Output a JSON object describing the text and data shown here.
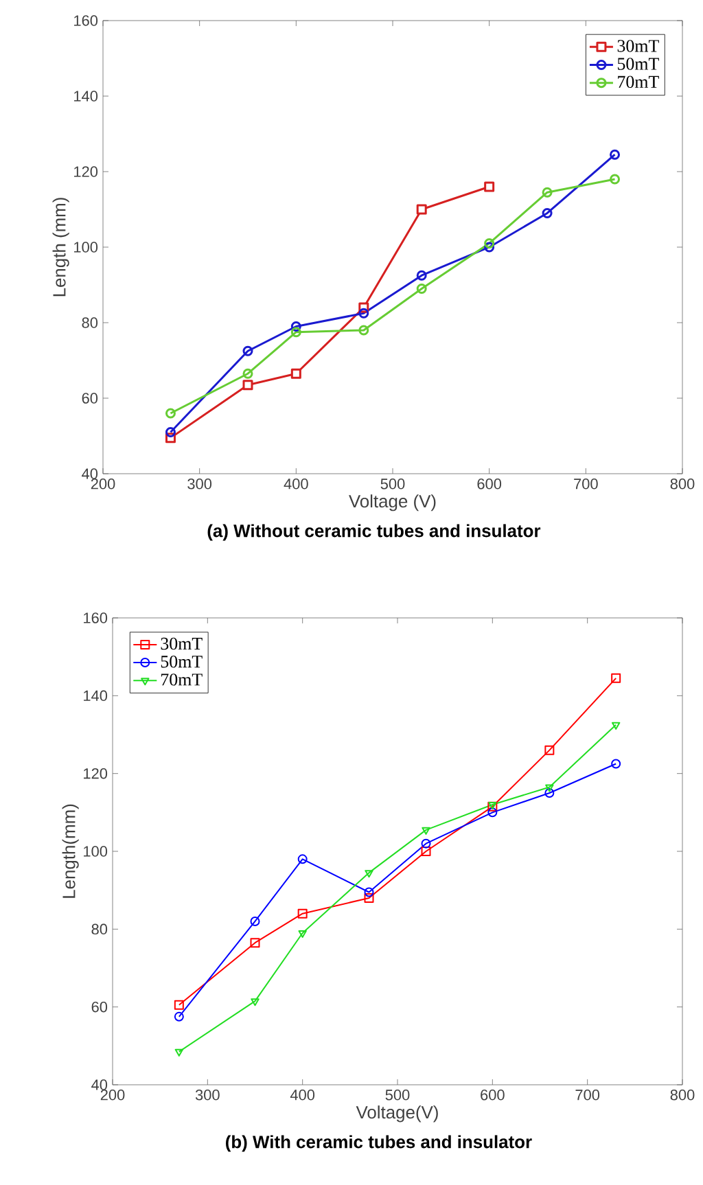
{
  "chart_data": [
    {
      "type": "line",
      "title": "(a) Without ceramic tubes and insulator",
      "xlabel": "Voltage (V)",
      "ylabel": "Length (mm)",
      "xlim": [
        200,
        800
      ],
      "ylim": [
        40,
        160
      ],
      "xticks": [
        200,
        300,
        400,
        500,
        600,
        700,
        800
      ],
      "yticks": [
        40,
        60,
        80,
        100,
        120,
        140,
        160
      ],
      "legend": "top right",
      "line_style": "solid",
      "series": [
        {
          "name": "30mT",
          "color": "#d62020",
          "marker": "square",
          "x": [
            270,
            350,
            400,
            470,
            530,
            600
          ],
          "values": [
            49.5,
            63.5,
            66.5,
            84,
            110,
            116
          ]
        },
        {
          "name": "50mT",
          "color": "#1a1ad0",
          "marker": "circle",
          "x": [
            270,
            350,
            400,
            470,
            530,
            600,
            660,
            730
          ],
          "values": [
            51,
            72.5,
            79,
            82.5,
            92.5,
            100,
            109,
            124.5
          ]
        },
        {
          "name": "70mT",
          "color": "#66cc33",
          "marker": "circle",
          "x": [
            270,
            350,
            400,
            470,
            530,
            600,
            660,
            730
          ],
          "values": [
            56,
            66.5,
            77.5,
            78,
            89,
            101,
            114.5,
            118
          ]
        }
      ]
    },
    {
      "type": "line",
      "title": "(b) With ceramic tubes and insulator",
      "xlabel": "Voltage(V)",
      "ylabel": "Length(mm)",
      "xlim": [
        200,
        800
      ],
      "ylim": [
        40,
        160
      ],
      "xticks": [
        200,
        300,
        400,
        500,
        600,
        700,
        800
      ],
      "yticks": [
        40,
        60,
        80,
        100,
        120,
        140,
        160
      ],
      "legend": "top left",
      "line_style": "solid",
      "series": [
        {
          "name": "30mT",
          "color": "#ff0000",
          "marker": "square",
          "x": [
            270,
            350,
            400,
            470,
            530,
            600,
            660,
            730
          ],
          "values": [
            60.5,
            76.5,
            84,
            88,
            100,
            111.5,
            126,
            144.5
          ]
        },
        {
          "name": "50mT",
          "color": "#0000ff",
          "marker": "circle",
          "x": [
            270,
            350,
            400,
            470,
            530,
            600,
            660,
            730
          ],
          "values": [
            57.5,
            82,
            98,
            89.5,
            102,
            110,
            115,
            122.5
          ]
        },
        {
          "name": "70mT",
          "color": "#22dd22",
          "marker": "triangle",
          "x": [
            270,
            350,
            400,
            470,
            530,
            600,
            660,
            730
          ],
          "values": [
            48.5,
            61.5,
            79,
            94.5,
            105.5,
            112,
            116.5,
            132.5
          ]
        }
      ]
    }
  ]
}
